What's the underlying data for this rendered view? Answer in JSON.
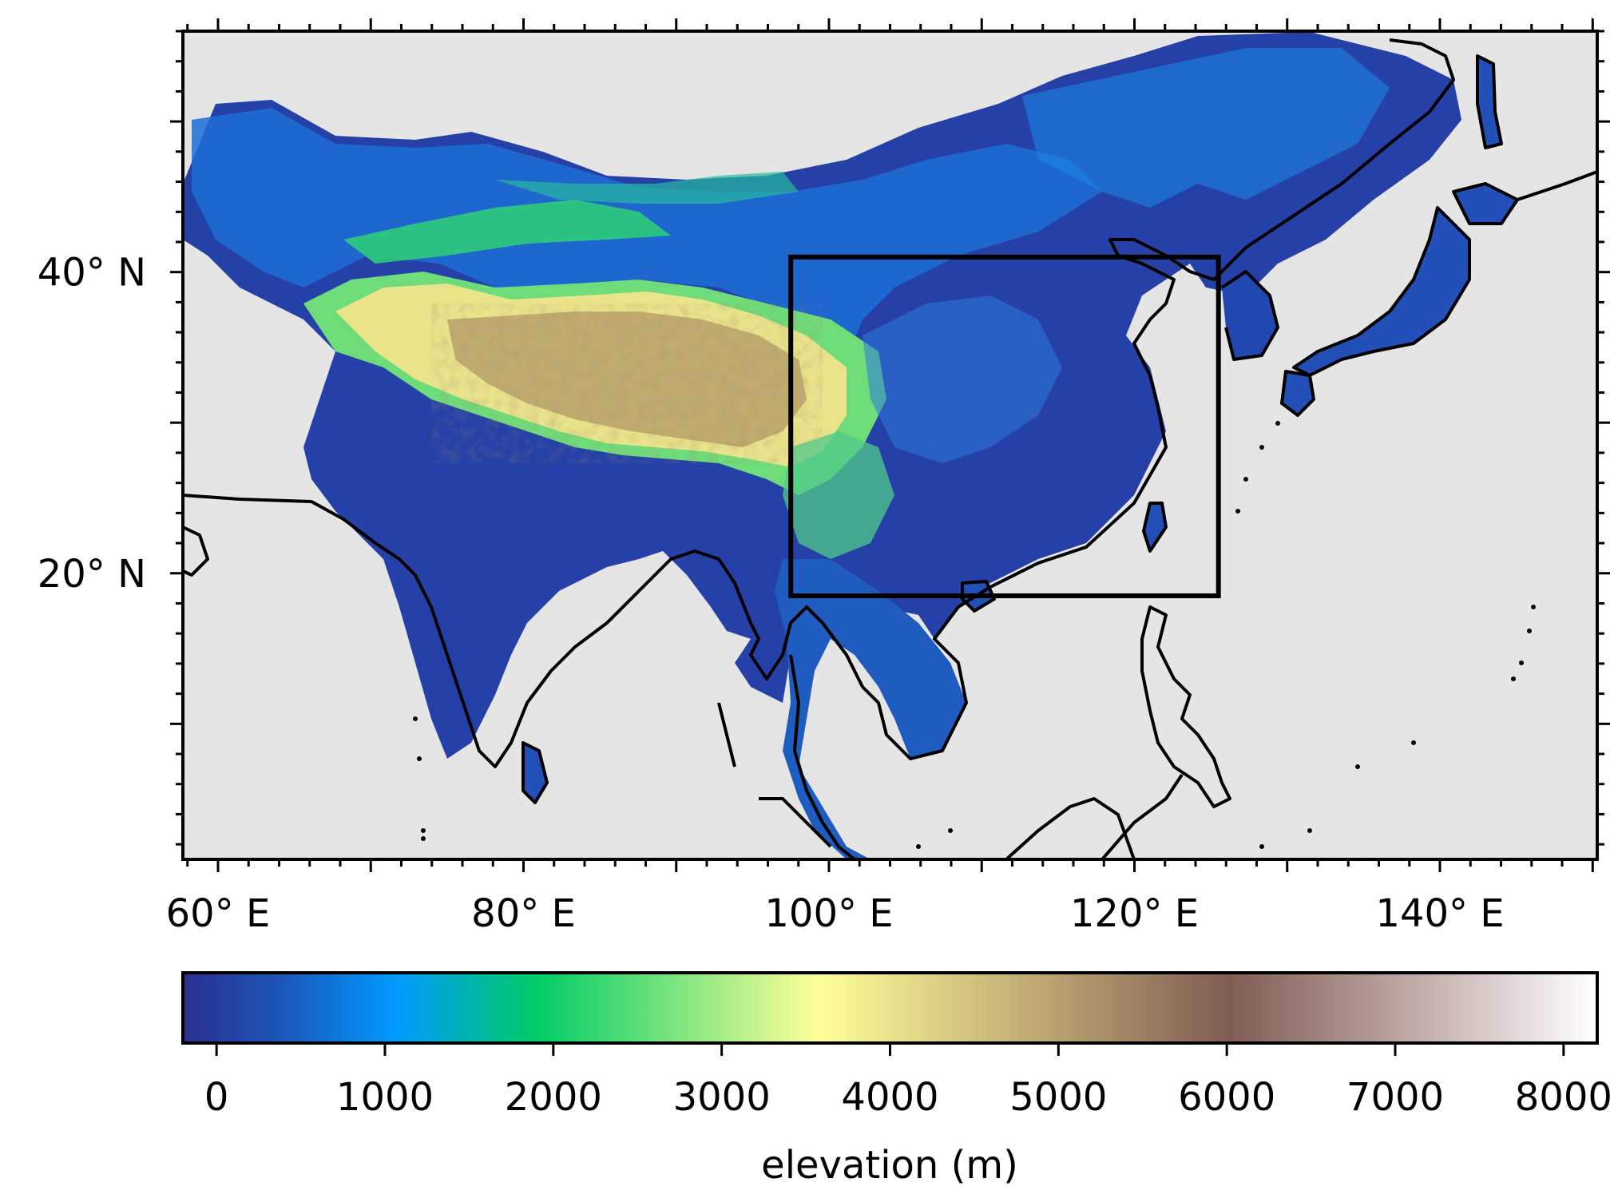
{
  "map": {
    "lon_range": [
      57.7,
      150.3
    ],
    "lat_range": [
      1.0,
      56.0
    ],
    "x_tick_labels": [
      {
        "lon": 60,
        "label": "60° E"
      },
      {
        "lon": 80,
        "label": "80° E"
      },
      {
        "lon": 100,
        "label": "100° E"
      },
      {
        "lon": 120,
        "label": "120° E"
      },
      {
        "lon": 140,
        "label": "140° E"
      }
    ],
    "y_tick_labels": [
      {
        "lat": 40,
        "label": "40° N"
      },
      {
        "lat": 20,
        "label": "20° N"
      }
    ],
    "ocean_color": "#e5e5e5",
    "coastline_color": "#000000",
    "study_region": {
      "lon": [
        97.5,
        125.5
      ],
      "lat": [
        18.5,
        41.0
      ]
    }
  },
  "colorbar": {
    "label": "elevation (m)",
    "range": [
      -200,
      8200
    ],
    "ticks": [
      "0",
      "1000",
      "2000",
      "3000",
      "4000",
      "5000",
      "6000",
      "7000",
      "8000"
    ],
    "colormap": "terrain",
    "colors": [
      "#333399",
      "#0099ff",
      "#00cc66",
      "#ffff99",
      "#805c54",
      "#ffffff"
    ]
  }
}
